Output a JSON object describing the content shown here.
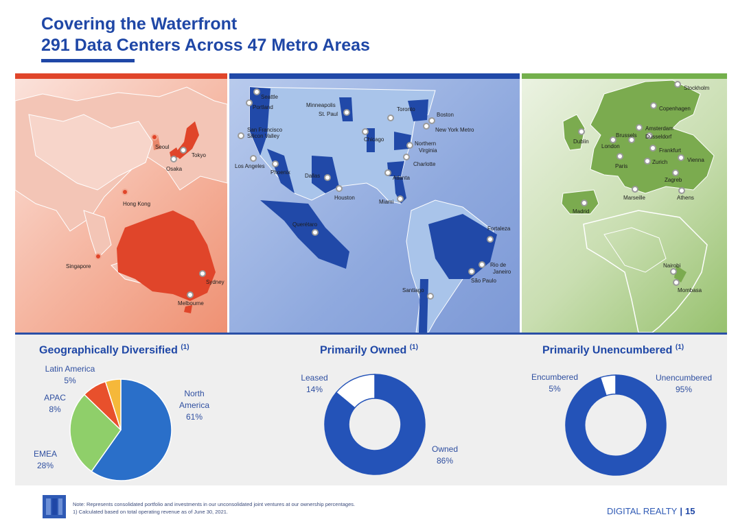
{
  "header": {
    "title_line1": "Covering the Waterfront",
    "title_line2": "291 Data Centers Across 47 Metro Areas"
  },
  "maps": {
    "apac": {
      "cities": [
        "Seoul",
        "Tokyo",
        "Osaka",
        "Hong Kong",
        "Singapore",
        "Sydney",
        "Melbourne"
      ]
    },
    "americas": {
      "cities": [
        "Seattle",
        "Portland",
        "Minneapolis",
        "St. Paul",
        "Toronto",
        "Boston",
        "San Francisco",
        "Silicon Valley",
        "New York Metro",
        "Chicago",
        "Northern",
        "Virginia",
        "Charlotte",
        "Los Angeles",
        "Phoenix",
        "Dallas",
        "Houston",
        "Atlanta",
        "Miami",
        "Querétaro",
        "Fortaleza",
        "Rio de",
        "Janeiro",
        "São Paulo",
        "Santiago"
      ]
    },
    "emea": {
      "cities": [
        "Stockholm",
        "Copenhagen",
        "Dublin",
        "Amsterdam",
        "Brussels",
        "Düsseldorf",
        "London",
        "Frankfurt",
        "Paris",
        "Zurich",
        "Vienna",
        "Zagreb",
        "Marseille",
        "Athens",
        "Madrid",
        "Nairobi",
        "Mombasa"
      ]
    }
  },
  "chart_data": [
    {
      "type": "pie",
      "title": "Geographically Diversified",
      "title_note": "(1)",
      "categories": [
        "North America",
        "EMEA",
        "APAC",
        "Latin America"
      ],
      "values": [
        61,
        28,
        8,
        5
      ],
      "labels": [
        {
          "name_lines": [
            "North",
            "America"
          ],
          "pct": "61%"
        },
        {
          "name_lines": [
            "EMEA"
          ],
          "pct": "28%"
        },
        {
          "name_lines": [
            "APAC"
          ],
          "pct": "8%"
        },
        {
          "name_lines": [
            "Latin America"
          ],
          "pct": "5%"
        }
      ],
      "colors": [
        "#2a6fc9",
        "#8fcf6a",
        "#e8502c",
        "#f5b83a"
      ]
    },
    {
      "type": "pie",
      "title": "Primarily Owned",
      "title_note": "(1)",
      "categories": [
        "Owned",
        "Leased"
      ],
      "values": [
        86,
        14
      ],
      "labels": [
        {
          "name": "Owned",
          "pct": "86%"
        },
        {
          "name": "Leased",
          "pct": "14%"
        }
      ],
      "colors": [
        "#2453b8",
        "#ffffff"
      ]
    },
    {
      "type": "pie",
      "title": "Primarily Unencumbered",
      "title_note": "(1)",
      "categories": [
        "Unencumbered",
        "Encumbered"
      ],
      "values": [
        95,
        5
      ],
      "labels": [
        {
          "name": "Unencumbered",
          "pct": "95%"
        },
        {
          "name": "Encumbered",
          "pct": "5%"
        }
      ],
      "colors": [
        "#2453b8",
        "#ffffff"
      ]
    }
  ],
  "footer": {
    "note": "Note: Represents consolidated portfolio and investments in our unconsolidated joint ventures at our ownership percentages.",
    "note2": "1)  Calculated based on total operating revenue as of June 30, 2021.",
    "brand": "DIGITAL REALTY",
    "separator": "|",
    "page": "15"
  }
}
